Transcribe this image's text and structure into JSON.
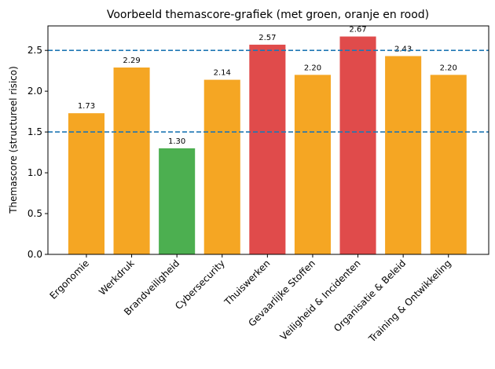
{
  "chart_data": {
    "type": "bar",
    "title": "Voorbeeld themascore-grafiek (met groen, oranje en rood)",
    "y_label": "Themascore (structureel risico)",
    "categories": [
      "Ergonomie",
      "Werkdruk",
      "Brandveiligheid",
      "Cybersecurity",
      "Thuiswerken",
      "Gevaarlijke Stoffen",
      "Veiligheid & Incidenten",
      "Organisatie & Beleid",
      "Training & Ontwikkeling"
    ],
    "values": [
      1.73,
      2.29,
      1.3,
      2.14,
      2.57,
      2.2,
      2.67,
      2.43,
      2.2
    ],
    "value_labels": [
      "1.73",
      "2.29",
      "1.30",
      "2.14",
      "2.57",
      "2.20",
      "2.67",
      "2.43",
      "2.20"
    ],
    "colors": [
      "#f5a623",
      "#f5a623",
      "#4caf50",
      "#f5a623",
      "#e04b4b",
      "#f5a623",
      "#e04b4b",
      "#f5a623",
      "#f5a623"
    ],
    "thresholds": [
      1.5,
      2.5
    ],
    "threshold_color": "#1f77b4",
    "ylim": [
      0,
      2.8
    ],
    "yticks": [
      {
        "value": 0,
        "label": "0.0"
      },
      {
        "value": 0.5,
        "label": "0.5"
      },
      {
        "value": 1,
        "label": "1.0"
      },
      {
        "value": 1.5,
        "label": "1.5"
      },
      {
        "value": 2,
        "label": "2.0"
      },
      {
        "value": 2.5,
        "label": "2.5"
      }
    ]
  }
}
